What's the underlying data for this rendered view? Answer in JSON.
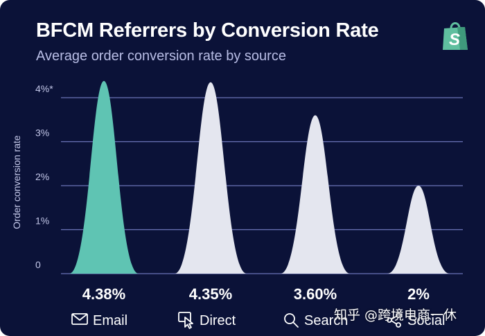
{
  "header": {
    "title": "BFCM Referrers by Conversion Rate",
    "subtitle": "Average order conversion rate by source"
  },
  "logo": {
    "icon": "shopify-bag-icon",
    "letter": "S",
    "color": "#5fbf9f"
  },
  "colors": {
    "background": "#0b1238",
    "highlight": "#5fc4b3",
    "bar": "#e4e6ef",
    "gridline": "#6b74b8",
    "tick": "#c3c7e8"
  },
  "chart_data": {
    "type": "area",
    "ylabel": "Order conversion rate",
    "ylim": [
      0,
      4
    ],
    "yticks": [
      {
        "value": 0,
        "label": "0"
      },
      {
        "value": 1,
        "label": "1%"
      },
      {
        "value": 2,
        "label": "2%"
      },
      {
        "value": 3,
        "label": "3%"
      },
      {
        "value": 4,
        "label": "4%*"
      }
    ],
    "grid": true,
    "categories": [
      "Email",
      "Direct",
      "Search",
      "Social"
    ],
    "values": [
      4.38,
      4.35,
      3.6,
      2.0
    ],
    "value_labels": [
      "4.38%",
      "4.35%",
      "3.60%",
      "2%"
    ],
    "icons": [
      "envelope-icon",
      "cursor-click-icon",
      "magnifier-icon",
      "share-icon"
    ],
    "highlighted": "Email"
  },
  "watermark": "知乎 @跨境电商一休"
}
